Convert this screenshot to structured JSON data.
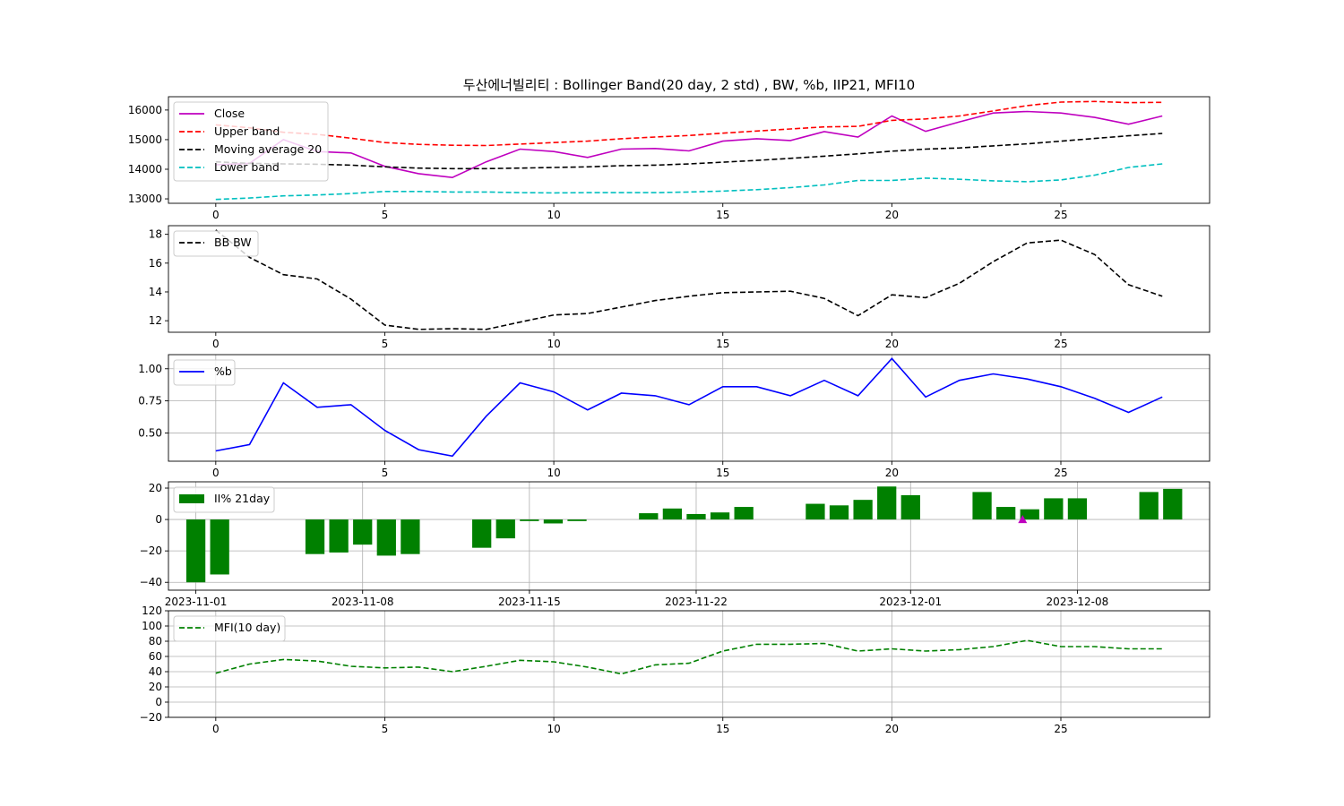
{
  "title": "두산에너빌리티 : Bollinger Band(20 day, 2 std) , BW, %b, IIP21, MFI10",
  "colors": {
    "close": "#bf00bf",
    "upper": "#ff0000",
    "ma": "#000000",
    "lower": "#00bfbf",
    "bw": "#000000",
    "pb": "#0000ff",
    "iip": "#008000",
    "mfi": "#008000",
    "marker": "#bf00bf",
    "grid": "#b0b0b0"
  },
  "chart_data": [
    {
      "type": "line",
      "x": [
        0,
        1,
        2,
        3,
        4,
        5,
        6,
        7,
        8,
        9,
        10,
        11,
        12,
        13,
        14,
        15,
        16,
        17,
        18,
        19,
        20,
        21,
        22,
        23,
        24,
        25,
        26,
        27,
        28
      ],
      "xticks": [
        0,
        5,
        10,
        15,
        20,
        25
      ],
      "ylim": [
        12850,
        16450
      ],
      "yticks": [
        13000,
        14000,
        15000,
        16000
      ],
      "grid": false,
      "legend": "upper-left",
      "series": [
        {
          "name": "Close",
          "key": "close",
          "dash": "solid",
          "values": [
            14150,
            14200,
            15000,
            14600,
            14550,
            14100,
            13850,
            13720,
            14250,
            14680,
            14600,
            14400,
            14680,
            14700,
            14620,
            14950,
            15030,
            14970,
            15270,
            15090,
            15800,
            15280,
            15600,
            15900,
            15950,
            15900,
            15750,
            15520,
            15800
          ]
        },
        {
          "name": "Upper band",
          "key": "upper",
          "dash": "dashed",
          "values": [
            15500,
            15400,
            15250,
            15180,
            15050,
            14900,
            14840,
            14810,
            14800,
            14850,
            14900,
            14950,
            15030,
            15090,
            15140,
            15220,
            15290,
            15360,
            15430,
            15450,
            15650,
            15700,
            15800,
            15970,
            16150,
            16270,
            16290,
            16250,
            16260
          ]
        },
        {
          "name": "Moving average 20",
          "key": "ma",
          "dash": "dashed",
          "values": [
            14250,
            14200,
            14180,
            14170,
            14140,
            14080,
            14040,
            14020,
            14020,
            14040,
            14060,
            14080,
            14120,
            14140,
            14180,
            14240,
            14300,
            14370,
            14440,
            14520,
            14610,
            14680,
            14720,
            14790,
            14860,
            14950,
            15040,
            15130,
            15210
          ]
        },
        {
          "name": "Lower band",
          "key": "lower",
          "dash": "dashed",
          "values": [
            12980,
            13030,
            13100,
            13130,
            13180,
            13250,
            13250,
            13230,
            13230,
            13210,
            13200,
            13210,
            13210,
            13210,
            13230,
            13260,
            13310,
            13380,
            13470,
            13620,
            13620,
            13700,
            13660,
            13610,
            13580,
            13640,
            13800,
            14060,
            14180
          ]
        }
      ]
    },
    {
      "type": "line",
      "x": [
        0,
        1,
        2,
        3,
        4,
        5,
        6,
        7,
        8,
        9,
        10,
        11,
        12,
        13,
        14,
        15,
        16,
        17,
        18,
        19,
        20,
        21,
        22,
        23,
        24,
        25,
        26,
        27,
        28
      ],
      "xticks": [
        0,
        5,
        10,
        15,
        20,
        25
      ],
      "ylim": [
        11.2,
        18.6
      ],
      "yticks": [
        12,
        14,
        16,
        18
      ],
      "grid": false,
      "legend": "upper-left",
      "series": [
        {
          "name": "BB BW",
          "key": "bw",
          "dash": "dashed",
          "values": [
            18.3,
            16.4,
            15.2,
            14.9,
            13.5,
            11.7,
            11.4,
            11.45,
            11.4,
            11.9,
            12.4,
            12.5,
            12.95,
            13.4,
            13.7,
            13.95,
            14.0,
            14.05,
            13.55,
            12.35,
            13.8,
            13.6,
            14.6,
            16.1,
            17.4,
            17.6,
            16.6,
            14.5,
            13.7
          ]
        }
      ]
    },
    {
      "type": "line",
      "x": [
        0,
        1,
        2,
        3,
        4,
        5,
        6,
        7,
        8,
        9,
        10,
        11,
        12,
        13,
        14,
        15,
        16,
        17,
        18,
        19,
        20,
        21,
        22,
        23,
        24,
        25,
        26,
        27,
        28
      ],
      "xticks": [
        0,
        5,
        10,
        15,
        20,
        25
      ],
      "ylim": [
        0.28,
        1.11
      ],
      "yticks": [
        "0.50",
        "0.75",
        "1.00"
      ],
      "grid": true,
      "legend": "upper-left",
      "series": [
        {
          "name": "%b",
          "key": "pb",
          "dash": "solid",
          "values": [
            0.36,
            0.41,
            0.89,
            0.7,
            0.72,
            0.52,
            0.37,
            0.32,
            0.63,
            0.89,
            0.82,
            0.68,
            0.81,
            0.79,
            0.72,
            0.86,
            0.86,
            0.79,
            0.91,
            0.79,
            1.08,
            0.78,
            0.91,
            0.96,
            0.92,
            0.86,
            0.77,
            0.66,
            0.78
          ]
        }
      ]
    },
    {
      "type": "bar",
      "dates": [
        1,
        2,
        6,
        7,
        8,
        9,
        10,
        13,
        14,
        15,
        16,
        17,
        20,
        21,
        22,
        23,
        24,
        27,
        28,
        29,
        30,
        1,
        4,
        5,
        6,
        7,
        8,
        11,
        12
      ],
      "months": [
        11,
        11,
        11,
        11,
        11,
        11,
        11,
        11,
        11,
        11,
        11,
        11,
        11,
        11,
        11,
        11,
        11,
        11,
        11,
        11,
        11,
        12,
        12,
        12,
        12,
        12,
        12,
        12,
        12
      ],
      "xticks": [
        "2023-11-01",
        "2023-11-08",
        "2023-11-15",
        "2023-11-22",
        "2023-12-01",
        "2023-12-08"
      ],
      "ylim": [
        -45,
        24
      ],
      "yticks": [
        "20",
        "0",
        "−20",
        "−40"
      ],
      "grid": true,
      "legend": "upper-left",
      "series": [
        {
          "name": "II% 21day",
          "key": "iip",
          "values": [
            -40,
            -35,
            -22,
            -21,
            -16,
            -23,
            -22,
            -18,
            -12,
            -1,
            -2.5,
            -1,
            4,
            7,
            3.5,
            4.5,
            8,
            10,
            9,
            12.5,
            21,
            15.5,
            17.5,
            8,
            6.5,
            13.5,
            13.5,
            17.5,
            19.5
          ]
        }
      ],
      "marker": {
        "month": 12,
        "day": 6,
        "value": 0
      }
    },
    {
      "type": "line",
      "x": [
        0,
        1,
        2,
        3,
        4,
        5,
        6,
        7,
        8,
        9,
        10,
        11,
        12,
        13,
        14,
        15,
        16,
        17,
        18,
        19,
        20,
        21,
        22,
        23,
        24,
        25,
        26,
        27,
        28
      ],
      "xticks": [
        0,
        5,
        10,
        15,
        20,
        25
      ],
      "ylim": [
        -20,
        120
      ],
      "yticks": [
        "120",
        "100",
        "80",
        "60",
        "40",
        "20",
        "0",
        "−20"
      ],
      "grid": true,
      "legend": "upper-left",
      "series": [
        {
          "name": "MFI(10 day)",
          "key": "mfi",
          "dash": "dashed",
          "values": [
            38,
            50,
            56,
            54,
            47,
            45,
            46,
            40,
            47,
            55,
            53,
            46,
            37,
            49,
            51,
            67,
            76,
            76,
            77,
            67,
            70,
            67,
            69,
            73,
            81,
            73,
            73,
            70,
            70
          ]
        }
      ]
    }
  ]
}
